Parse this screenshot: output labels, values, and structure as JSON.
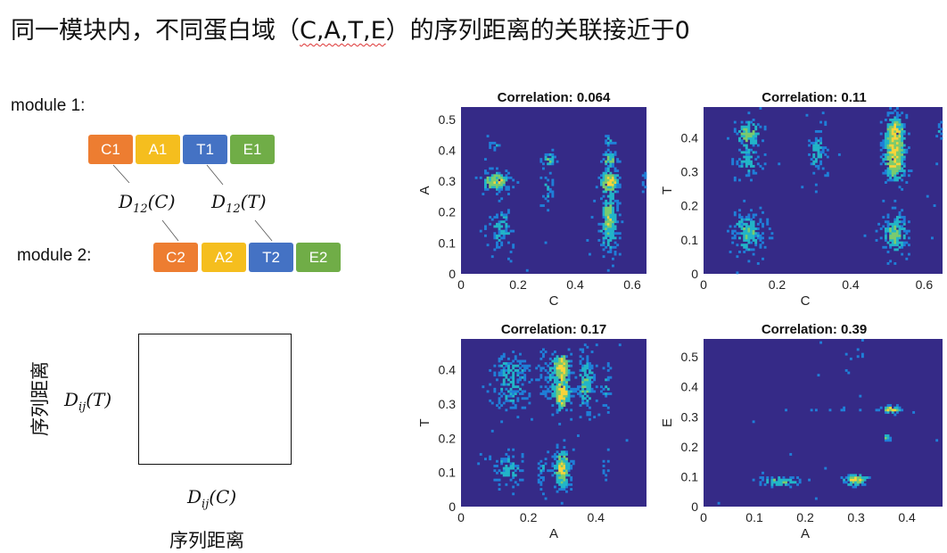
{
  "title": {
    "pre": "同一模块内，不同蛋白域（",
    "domains": "C,A,T,E",
    "post": "）的序列距离的关联接近于0"
  },
  "diagram": {
    "module1_label": "module 1:",
    "module2_label": "module 2:",
    "module1": [
      {
        "label": "C1",
        "color": "#ED7D31"
      },
      {
        "label": "A1",
        "color": "#F5BE1E"
      },
      {
        "label": "T1",
        "color": "#4472C4"
      },
      {
        "label": "E1",
        "color": "#70AD47"
      }
    ],
    "module2": [
      {
        "label": "C2",
        "color": "#ED7D31"
      },
      {
        "label": "A2",
        "color": "#F5BE1E"
      },
      {
        "label": "T2",
        "color": "#4472C4"
      },
      {
        "label": "E2",
        "color": "#70AD47"
      }
    ],
    "dist_c": {
      "d": "D",
      "sub": "12",
      "arg": "(C)"
    },
    "dist_t": {
      "d": "D",
      "sub": "12",
      "arg": "(T)"
    },
    "axis_y": {
      "d": "D",
      "sub": "ij",
      "arg": "(T)"
    },
    "axis_x": {
      "d": "D",
      "sub": "ij",
      "arg": "(C)"
    },
    "y_caption": "序列距离",
    "x_caption": "序列距离"
  },
  "colors": {
    "bg": "#352A87",
    "low": "#1F7FD8",
    "mid": "#22B5C8",
    "high": "#7BCB6E",
    "peak": "#F9D43A"
  },
  "chart_data": [
    {
      "type": "heatmap",
      "title": "Correlation: 0.064",
      "xlabel": "C",
      "ylabel": "A",
      "xlim": [
        0,
        0.65
      ],
      "ylim": [
        0,
        0.54
      ],
      "xticks": [
        0,
        0.2,
        0.4,
        0.6
      ],
      "yticks": [
        0,
        0.1,
        0.2,
        0.3,
        0.4,
        0.5
      ],
      "clusters": [
        [
          0.12,
          0.3,
          0.03,
          0.018,
          1.0
        ],
        [
          0.14,
          0.15,
          0.025,
          0.04,
          0.45
        ],
        [
          0.12,
          0.42,
          0.02,
          0.015,
          0.25
        ],
        [
          0.31,
          0.37,
          0.02,
          0.015,
          0.5
        ],
        [
          0.3,
          0.28,
          0.012,
          0.03,
          0.35
        ],
        [
          0.52,
          0.3,
          0.02,
          0.02,
          1.2
        ],
        [
          0.52,
          0.37,
          0.015,
          0.015,
          0.7
        ],
        [
          0.52,
          0.15,
          0.02,
          0.05,
          0.6
        ],
        [
          0.52,
          0.22,
          0.015,
          0.04,
          0.45
        ],
        [
          0.52,
          0.43,
          0.012,
          0.015,
          0.35
        ],
        [
          0.645,
          0.3,
          0.008,
          0.02,
          0.3
        ]
      ]
    },
    {
      "type": "heatmap",
      "title": "Correlation: 0.11",
      "xlabel": "C",
      "ylabel": "T",
      "xlim": [
        0,
        0.65
      ],
      "ylim": [
        0,
        0.49
      ],
      "xticks": [
        0,
        0.2,
        0.4,
        0.6
      ],
      "yticks": [
        0,
        0.1,
        0.2,
        0.3,
        0.4
      ],
      "clusters": [
        [
          0.12,
          0.41,
          0.02,
          0.025,
          0.7
        ],
        [
          0.12,
          0.33,
          0.02,
          0.025,
          0.5
        ],
        [
          0.12,
          0.12,
          0.025,
          0.035,
          0.6
        ],
        [
          0.31,
          0.36,
          0.012,
          0.04,
          0.5
        ],
        [
          0.52,
          0.42,
          0.015,
          0.03,
          1.0
        ],
        [
          0.52,
          0.34,
          0.018,
          0.04,
          1.1
        ],
        [
          0.52,
          0.12,
          0.02,
          0.035,
          0.7
        ],
        [
          0.648,
          0.42,
          0.01,
          0.015,
          0.3
        ]
      ]
    },
    {
      "type": "heatmap",
      "title": "Correlation: 0.17",
      "xlabel": "A",
      "ylabel": "T",
      "xlim": [
        0,
        0.55
      ],
      "ylim": [
        0,
        0.49
      ],
      "xticks": [
        0,
        0.2,
        0.4
      ],
      "yticks": [
        0,
        0.1,
        0.2,
        0.3,
        0.4
      ],
      "clusters": [
        [
          0.15,
          0.4,
          0.03,
          0.03,
          0.35
        ],
        [
          0.15,
          0.33,
          0.035,
          0.035,
          0.3
        ],
        [
          0.14,
          0.11,
          0.025,
          0.03,
          0.45
        ],
        [
          0.3,
          0.41,
          0.015,
          0.025,
          1.0
        ],
        [
          0.3,
          0.33,
          0.015,
          0.03,
          1.1
        ],
        [
          0.26,
          0.38,
          0.02,
          0.04,
          0.3
        ],
        [
          0.37,
          0.36,
          0.015,
          0.05,
          0.6
        ],
        [
          0.3,
          0.11,
          0.015,
          0.035,
          1.0
        ],
        [
          0.24,
          0.1,
          0.008,
          0.03,
          0.3
        ],
        [
          0.43,
          0.35,
          0.01,
          0.03,
          0.3
        ],
        [
          0.43,
          0.1,
          0.007,
          0.025,
          0.25
        ]
      ]
    },
    {
      "type": "heatmap",
      "title": "Correlation: 0.39",
      "xlabel": "A",
      "ylabel": "E",
      "xlim": [
        0,
        0.47
      ],
      "ylim": [
        0,
        0.56
      ],
      "xticks": [
        0,
        0.1,
        0.2,
        0.3,
        0.4
      ],
      "yticks": [
        0,
        0.1,
        0.2,
        0.3,
        0.4,
        0.5
      ],
      "clusters": [
        [
          0.15,
          0.085,
          0.025,
          0.01,
          0.7
        ],
        [
          0.3,
          0.09,
          0.015,
          0.012,
          1.0
        ],
        [
          0.37,
          0.325,
          0.01,
          0.008,
          1.1
        ],
        [
          0.36,
          0.23,
          0.005,
          0.008,
          0.5
        ],
        [
          0.3,
          0.51,
          0.01,
          0.01,
          0.3
        ],
        [
          0.3,
          0.325,
          0.06,
          0.003,
          0.2
        ]
      ]
    }
  ]
}
